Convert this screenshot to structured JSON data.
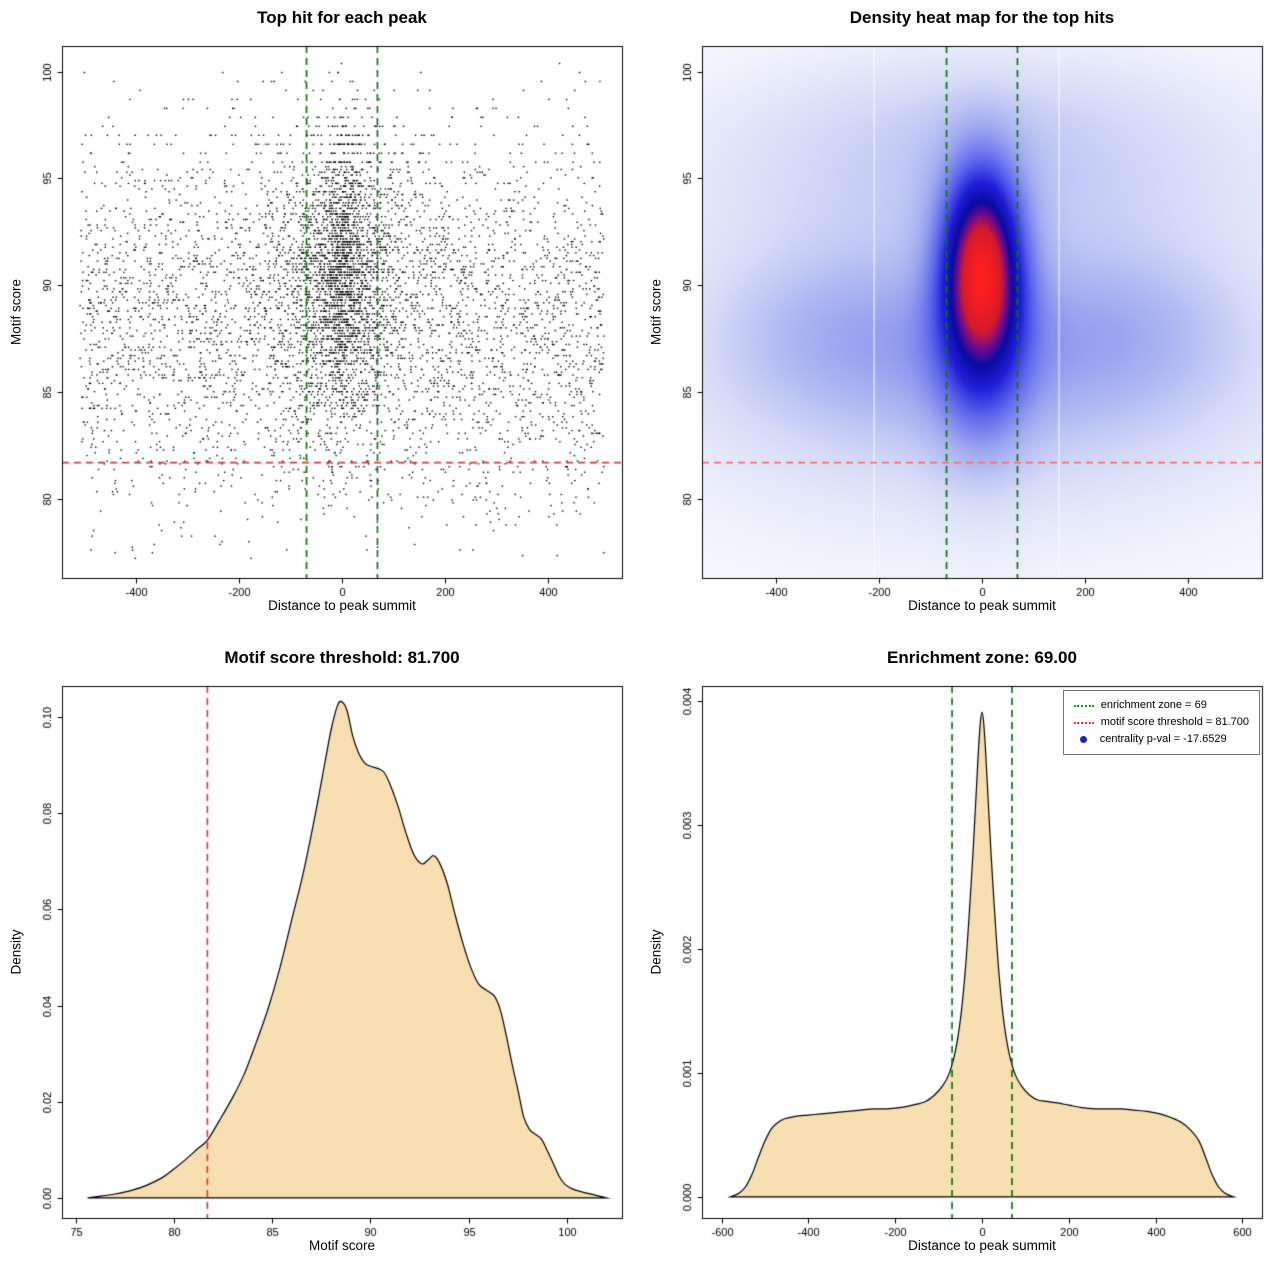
{
  "figure": {
    "background": "#ffffff"
  },
  "chart_data": [
    {
      "type": "scatter",
      "title": "Top hit for each peak",
      "xlabel": "Distance to peak summit",
      "ylabel": "Motif score",
      "xlim": [
        -545,
        545
      ],
      "ylim": [
        76.3,
        101.2
      ],
      "xticks": [
        -400,
        -200,
        0,
        200,
        400
      ],
      "xtick_labels": [
        "-400",
        "-200",
        "0",
        "200",
        "400"
      ],
      "yticks": [
        80,
        85,
        90,
        95,
        100
      ],
      "ytick_labels": [
        "80",
        "85",
        "90",
        "95",
        "100"
      ],
      "point_color": "#000000",
      "n_points": 6500,
      "seed": 77,
      "cluster": {
        "frac": 0.4,
        "x_laplace_scale": 46,
        "y_mean": 90.7,
        "y_sd": 3.3
      },
      "background": {
        "x_min": -510,
        "x_max": 510,
        "y_mean": 88.2,
        "y_sd": 4.6
      },
      "y_min": 77.2,
      "y_max": 100.4,
      "score_quantum": 0.13,
      "high_score_cut": 95.6,
      "high_score_quantum": 0.42,
      "enrichment_zone": {
        "x1": -69,
        "x2": 69,
        "color": "#0a760a"
      },
      "score_threshold": {
        "y": 81.7,
        "color": "#e83535"
      }
    },
    {
      "type": "heatmap",
      "title": "Density heat map for the top hits",
      "xlabel": "Distance to peak summit",
      "ylabel": "Motif score",
      "xlim": [
        -545,
        545
      ],
      "ylim": [
        76.3,
        101.2
      ],
      "xticks": [
        -400,
        -200,
        0,
        200,
        400
      ],
      "xtick_labels": [
        "-400",
        "-200",
        "0",
        "200",
        "400"
      ],
      "yticks": [
        80,
        85,
        90,
        95,
        100
      ],
      "ytick_labels": [
        "80",
        "85",
        "90",
        "95",
        "100"
      ],
      "kernels": [
        {
          "a": 1.0,
          "mx": 0,
          "sx": 52,
          "my": 91.2,
          "sy": 3.0
        },
        {
          "a": 0.55,
          "mx": 0,
          "sx": 64,
          "my": 88.4,
          "sy": 4.0
        },
        {
          "a": 0.22,
          "mx": -260,
          "sx": 190,
          "my": 88.2,
          "sy": 2.6
        },
        {
          "a": 0.22,
          "mx": 260,
          "sx": 190,
          "my": 88.2,
          "sy": 2.6
        },
        {
          "a": 0.15,
          "mx": 0,
          "sx": 360,
          "my": 85.0,
          "sy": 2.6
        },
        {
          "a": 0.13,
          "mx": 0,
          "sx": 380,
          "my": 95.3,
          "sy": 2.7
        },
        {
          "a": 0.06,
          "mx": 0,
          "sx": 300,
          "my": 98.2,
          "sy": 1.8
        },
        {
          "a": 0.12,
          "mx": 0,
          "sx": 430,
          "my": 91.0,
          "sy": 8.0
        },
        {
          "a": 0.07,
          "mx": 0,
          "sx": 600,
          "my": 88.5,
          "sy": 10.0
        },
        {
          "a": 0.05,
          "mx": 0,
          "sx": 520,
          "my": 81.5,
          "sy": 3.5
        }
      ],
      "color_stops": [
        [
          0,
          255,
          255,
          255
        ],
        [
          0.06,
          242,
          244,
          252
        ],
        [
          0.16,
          214,
          220,
          247
        ],
        [
          0.3,
          160,
          170,
          240
        ],
        [
          0.45,
          90,
          100,
          235
        ],
        [
          0.58,
          30,
          30,
          215
        ],
        [
          0.7,
          10,
          10,
          160
        ],
        [
          0.78,
          110,
          10,
          140
        ],
        [
          0.86,
          210,
          25,
          45
        ],
        [
          1,
          255,
          30,
          30
        ]
      ],
      "white_lines": [
        -210,
        150
      ],
      "enrichment_zone": {
        "x1": -69,
        "x2": 69,
        "color": "#0a760a"
      },
      "score_threshold": {
        "y": 81.7,
        "color": "#ff6b6b"
      }
    },
    {
      "type": "density",
      "title": "Motif score threshold: 81.700",
      "xlabel": "Motif score",
      "ylabel": "Density",
      "xlim": [
        74.3,
        102.8
      ],
      "ylim": [
        -0.0042,
        0.1065
      ],
      "xticks": [
        75,
        80,
        85,
        90,
        95,
        100
      ],
      "xtick_labels": [
        "75",
        "80",
        "85",
        "90",
        "95",
        "100"
      ],
      "yticks": [
        0,
        0.02,
        0.04,
        0.06,
        0.08,
        0.1
      ],
      "ytick_labels": [
        "0.00",
        "0.02",
        "0.04",
        "0.06",
        "0.08",
        "0.10"
      ],
      "fill": "#f7dfb2",
      "threshold_line": {
        "x": 81.7,
        "color": "#e83535"
      },
      "curve": {
        "x": [
          75.6,
          76.2,
          77.0,
          77.8,
          78.6,
          79.4,
          80.0,
          80.6,
          81.2,
          81.7,
          82.3,
          83.0,
          83.6,
          84.2,
          84.8,
          85.4,
          86.0,
          86.6,
          87.2,
          87.7,
          88.0,
          88.3,
          88.5,
          88.8,
          89.1,
          89.4,
          89.7,
          90.0,
          90.4,
          90.7,
          91.0,
          91.4,
          91.8,
          92.2,
          92.6,
          92.9,
          93.2,
          93.5,
          93.9,
          94.3,
          94.7,
          95.1,
          95.5,
          95.9,
          96.3,
          96.6,
          96.9,
          97.2,
          97.5,
          97.8,
          98.1,
          98.4,
          98.7,
          99.0,
          99.3,
          99.6,
          99.9,
          100.3,
          100.8,
          101.3,
          101.8,
          102.0
        ],
        "y": [
          0,
          0.0003,
          0.0008,
          0.0015,
          0.0026,
          0.0042,
          0.006,
          0.008,
          0.0102,
          0.012,
          0.016,
          0.021,
          0.026,
          0.0325,
          0.0395,
          0.048,
          0.058,
          0.068,
          0.08,
          0.091,
          0.0975,
          0.1022,
          0.1033,
          0.1015,
          0.096,
          0.0925,
          0.0905,
          0.0898,
          0.0893,
          0.0885,
          0.086,
          0.0815,
          0.076,
          0.0715,
          0.0695,
          0.0702,
          0.0712,
          0.0698,
          0.0655,
          0.059,
          0.053,
          0.048,
          0.0445,
          0.0432,
          0.042,
          0.0392,
          0.034,
          0.028,
          0.0225,
          0.0168,
          0.0142,
          0.0132,
          0.0122,
          0.0098,
          0.0072,
          0.0045,
          0.0028,
          0.0018,
          0.0012,
          0.0007,
          0.0002,
          0
        ]
      }
    },
    {
      "type": "density",
      "title": "Enrichment zone: 69.00",
      "xlabel": "Distance to peak summit",
      "ylabel": "Density",
      "xlim": [
        -645,
        645
      ],
      "ylim": [
        -0.00017,
        0.00412
      ],
      "xticks": [
        -600,
        -400,
        -200,
        0,
        200,
        400,
        600
      ],
      "xtick_labels": [
        "-600",
        "-400",
        "-200",
        "0",
        "200",
        "400",
        "600"
      ],
      "yticks": [
        0,
        0.001,
        0.002,
        0.003,
        0.004
      ],
      "ytick_labels": [
        "0.000",
        "0.001",
        "0.002",
        "0.003",
        "0.004"
      ],
      "fill": "#f7dfb2",
      "zone_lines": {
        "x1": -69,
        "x2": 69,
        "color": "#0a760a"
      },
      "curve": {
        "x": [
          -580,
          -560,
          -545,
          -530,
          -515,
          -500,
          -485,
          -470,
          -455,
          -430,
          -400,
          -370,
          -340,
          -310,
          -280,
          -250,
          -220,
          -190,
          -160,
          -130,
          -110,
          -90,
          -75,
          -60,
          -48,
          -38,
          -30,
          -22,
          -15,
          -9,
          -4,
          0,
          4,
          9,
          15,
          22,
          30,
          38,
          48,
          60,
          75,
          90,
          110,
          130,
          150,
          170,
          200,
          230,
          260,
          290,
          320,
          350,
          380,
          410,
          435,
          460,
          480,
          500,
          515,
          530,
          545,
          560,
          580
        ],
        "y": [
          0,
          3e-05,
          8e-05,
          0.00018,
          0.00032,
          0.00045,
          0.00055,
          0.0006,
          0.00063,
          0.00065,
          0.00066,
          0.00067,
          0.00068,
          0.00069,
          0.0007,
          0.00071,
          0.00071,
          0.00072,
          0.00074,
          0.00077,
          0.00082,
          0.0009,
          0.001,
          0.0012,
          0.00148,
          0.00185,
          0.00225,
          0.0027,
          0.00315,
          0.00355,
          0.00382,
          0.00391,
          0.00382,
          0.00355,
          0.00315,
          0.0027,
          0.00225,
          0.00185,
          0.00148,
          0.0012,
          0.001,
          0.0009,
          0.00082,
          0.00078,
          0.00077,
          0.00076,
          0.00074,
          0.00072,
          0.00071,
          0.00071,
          0.00071,
          0.0007,
          0.00069,
          0.00067,
          0.00064,
          0.0006,
          0.00054,
          0.00045,
          0.00032,
          0.00018,
          8e-05,
          3e-05,
          0
        ]
      },
      "legend": {
        "items": [
          {
            "label": "enrichment zone = 69",
            "glyph": "dotted-line",
            "color": "#0a9a0a"
          },
          {
            "label": "motif score threshold = 81.700",
            "glyph": "dotted-line",
            "color": "#ff3030"
          },
          {
            "label": "centrality p-val = -17.6529",
            "glyph": "dot",
            "color": "#2020c0"
          }
        ]
      }
    }
  ]
}
